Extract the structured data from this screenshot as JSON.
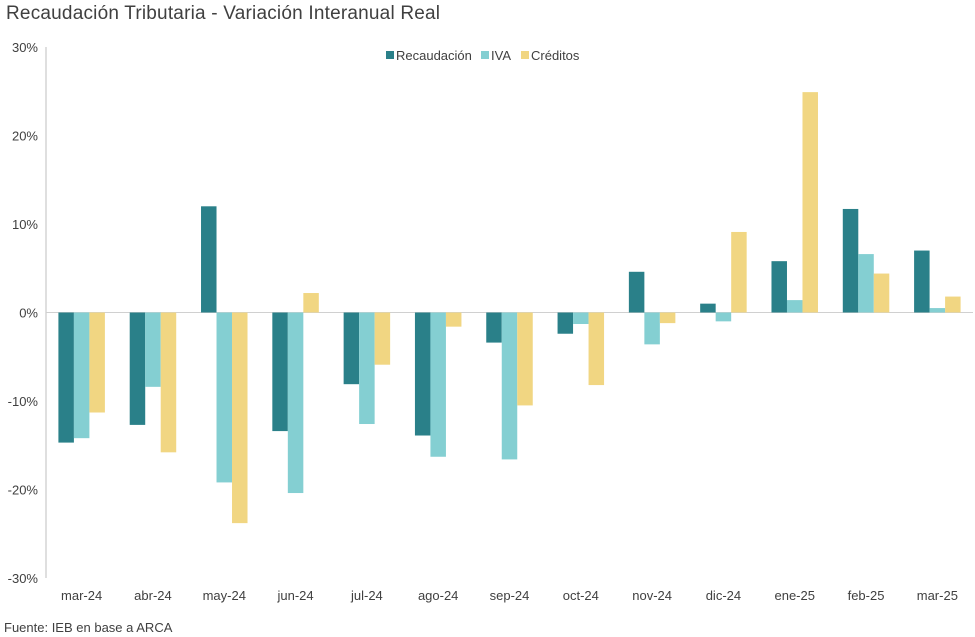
{
  "title": "Recaudación Tributaria - Variación Interanual Real",
  "source": "Fuente: IEB en base a ARCA",
  "chart_data": {
    "type": "bar",
    "categories": [
      "mar-24",
      "abr-24",
      "may-24",
      "jun-24",
      "jul-24",
      "ago-24",
      "sep-24",
      "oct-24",
      "nov-24",
      "dic-24",
      "ene-25",
      "feb-25",
      "mar-25"
    ],
    "series": [
      {
        "name": "Recaudación",
        "color": "#2a8089",
        "values": [
          -14.7,
          -12.7,
          12.0,
          -13.4,
          -8.1,
          -13.9,
          -3.4,
          -2.4,
          4.6,
          1.0,
          5.8,
          11.7,
          7.0
        ]
      },
      {
        "name": "IVA",
        "color": "#84cfd2",
        "values": [
          -14.2,
          -8.4,
          -19.2,
          -20.4,
          -12.6,
          -16.3,
          -16.6,
          -1.3,
          -3.6,
          -1.0,
          1.4,
          6.6,
          0.5
        ]
      },
      {
        "name": "Créditos",
        "color": "#f1d682",
        "values": [
          -11.3,
          -15.8,
          -23.8,
          2.2,
          -5.9,
          -1.6,
          -10.5,
          -8.2,
          -1.2,
          9.1,
          24.9,
          4.4,
          1.8
        ]
      }
    ],
    "ylim": [
      -30,
      30
    ],
    "yticks": [
      -30,
      -20,
      -10,
      0,
      10,
      20,
      30
    ],
    "ytick_labels": [
      "-30%",
      "-20%",
      "-10%",
      "0%",
      "10%",
      "20%",
      "30%"
    ],
    "legend_position": "top-center",
    "grid": false
  }
}
